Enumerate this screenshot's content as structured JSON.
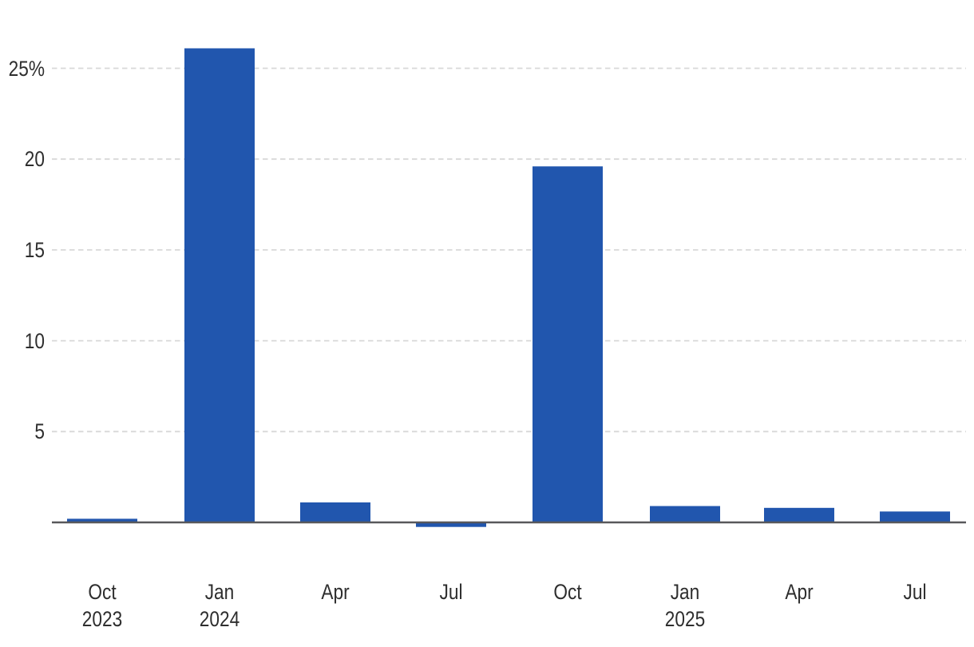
{
  "chart_data": {
    "type": "bar",
    "title": "",
    "unit": "%",
    "categories": [
      "Oct 2023",
      "Jan 2024",
      "Apr 2024",
      "Jul 2024",
      "Oct 2024",
      "Jan 2025",
      "Apr 2025",
      "Jul 2025"
    ],
    "x_tick_lines": [
      [
        "Oct",
        "2023"
      ],
      [
        "Jan",
        "2024"
      ],
      [
        "Apr"
      ],
      [
        "Jul"
      ],
      [
        "Oct"
      ],
      [
        "Jan",
        "2025"
      ],
      [
        "Apr"
      ],
      [
        "Jul"
      ]
    ],
    "values": [
      0.2,
      26.1,
      1.1,
      -0.25,
      19.6,
      0.9,
      0.8,
      0.6
    ],
    "y_ticks": [
      5,
      10,
      15,
      20,
      25
    ],
    "y_tick_labels": [
      "5",
      "10",
      "15",
      "20",
      "25%"
    ],
    "ylim": [
      -1,
      27
    ],
    "xlabel": "",
    "ylabel": "",
    "grid": "horizontal-dashed",
    "legend": "none",
    "colors": {
      "bar": "#2156AE",
      "axis": "#58585B",
      "gridline": "#D8D8D8",
      "text": "#2E2E2E",
      "background": "#FFFFFF"
    }
  }
}
